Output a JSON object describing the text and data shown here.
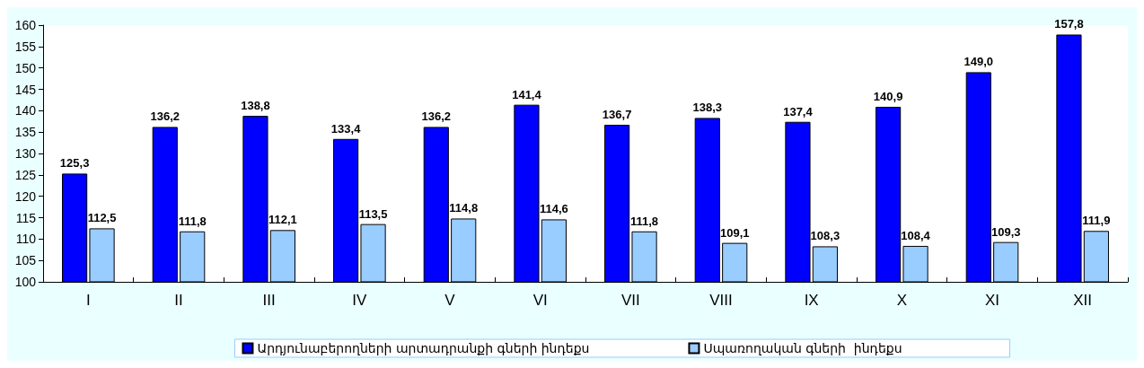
{
  "chart_data": {
    "type": "bar",
    "categories": [
      "I",
      "II",
      "III",
      "IV",
      "V",
      "VI",
      "VII",
      "VIII",
      "IX",
      "X",
      "XI",
      "XII"
    ],
    "series": [
      {
        "name": "Արդյունաբերողների արտադրանքի գների ինդեքս",
        "color": "#0000ff",
        "values": [
          125.3,
          136.2,
          138.8,
          133.4,
          136.2,
          141.4,
          136.7,
          138.3,
          137.4,
          140.9,
          149.0,
          157.8
        ],
        "value_labels": [
          "125,3",
          "136,2",
          "138,8",
          "133,4",
          "136,2",
          "141,4",
          "136,7",
          "138,3",
          "137,4",
          "140,9",
          "149,0",
          "157,8"
        ]
      },
      {
        "name": "Սպառողական գների  ինդեքս",
        "color": "#99ccff",
        "values": [
          112.5,
          111.8,
          112.1,
          113.5,
          114.8,
          114.6,
          111.8,
          109.1,
          108.3,
          108.4,
          109.3,
          111.9
        ],
        "value_labels": [
          "112,5",
          "111,8",
          "112,1",
          "113,5",
          "114,8",
          "114,6",
          "111,8",
          "109,1",
          "108,3",
          "108,4",
          "109,3",
          "111,9"
        ]
      }
    ],
    "ylim": [
      100,
      160
    ],
    "yticks": [
      100,
      105,
      110,
      115,
      120,
      125,
      130,
      135,
      140,
      145,
      150,
      155,
      160
    ],
    "grid": false,
    "legend": "bottom"
  }
}
